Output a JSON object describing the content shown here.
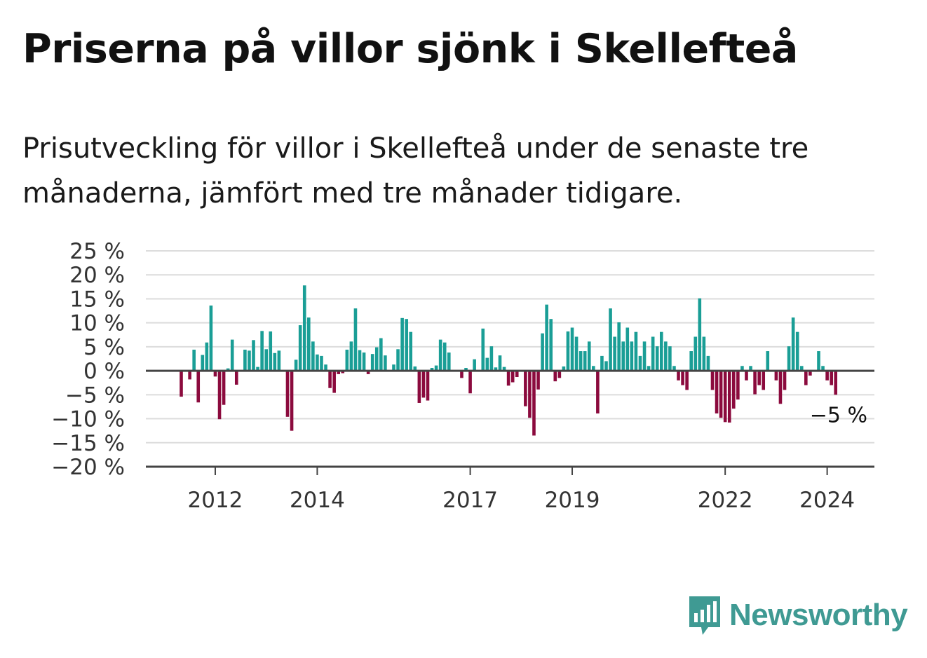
{
  "header": {
    "title": "Priserna på villor sjönk i Skellefteå",
    "subtitle": "Prisutveckling för villor i Skellefteå under de senaste tre månaderna, jämfört med tre månader tidigare."
  },
  "brand": {
    "name": "Newsworthy",
    "color": "#3f9a93"
  },
  "chart_data": {
    "type": "bar",
    "title": "Priserna på villor sjönk i Skellefteå",
    "xlabel": "",
    "ylabel": "",
    "ylim": [
      -20,
      25
    ],
    "yticks": [
      25,
      20,
      15,
      10,
      5,
      0,
      -5,
      -10,
      -15,
      -20
    ],
    "ytick_labels": [
      "25 %",
      "20 %",
      "15 %",
      "10 %",
      "5 %",
      "0 %",
      "−5 %",
      "−10 %",
      "−15 %",
      "−20 %"
    ],
    "xticks": [
      {
        "label": "2012",
        "index": 8
      },
      {
        "label": "2014",
        "index": 32
      },
      {
        "label": "2017",
        "index": 68
      },
      {
        "label": "2019",
        "index": 92
      },
      {
        "label": "2022",
        "index": 128
      },
      {
        "label": "2024",
        "index": 152
      }
    ],
    "start": "2011-05",
    "frequency": "monthly",
    "positive_color": "#1a9e96",
    "negative_color": "#8b0a3d",
    "grid": true,
    "last_value_label": "−5 %",
    "values": [
      -5.4,
      0,
      -1.8,
      4.4,
      -6.6,
      3.3,
      5.9,
      13.6,
      -1.2,
      -10.1,
      -7.1,
      0.5,
      6.5,
      -2.9,
      0,
      4.4,
      4.2,
      6.4,
      0.8,
      8.3,
      4.5,
      8.2,
      3.7,
      4.2,
      0,
      -9.6,
      -12.5,
      2.3,
      9.5,
      17.8,
      11.1,
      6.1,
      3.4,
      3.1,
      1.3,
      -3.6,
      -4.6,
      -0.7,
      -0.5,
      4.4,
      6.1,
      13,
      4.3,
      3.8,
      -0.7,
      3.5,
      4.9,
      6.8,
      3.2,
      0,
      1.3,
      4.5,
      11,
      10.8,
      8.1,
      0.9,
      -6.7,
      -5.6,
      -6.2,
      0.6,
      1.1,
      6.5,
      5.9,
      3.8,
      0,
      0,
      -1.5,
      0.6,
      -4.7,
      2.4,
      0,
      8.8,
      2.7,
      5.1,
      0.7,
      3.2,
      0.8,
      -3.1,
      -2.4,
      -1.3,
      0,
      -7.4,
      -9.8,
      -13.5,
      -3.9,
      7.8,
      13.8,
      10.8,
      -2.2,
      -1.5,
      0.9,
      8.2,
      9,
      7.1,
      4.1,
      4.1,
      6.1,
      1,
      -8.9,
      3.1,
      2,
      13,
      7.1,
      10.1,
      6.1,
      9,
      6.1,
      8.1,
      3.1,
      6.1,
      1,
      7.1,
      5.1,
      8.1,
      6.1,
      5.1,
      1,
      -2,
      -3,
      -4,
      4.1,
      7.1,
      15.1,
      7.1,
      3.1,
      -4,
      -8.9,
      -9.8,
      -10.7,
      -10.8,
      -7.9,
      -6,
      1,
      -2,
      1,
      -4.9,
      -3,
      -4,
      4.1,
      0,
      -2,
      -6.9,
      -4,
      5.1,
      11.1,
      8.1,
      1,
      -3,
      -1,
      0,
      4.1,
      1,
      -2,
      -3,
      -5
    ]
  }
}
